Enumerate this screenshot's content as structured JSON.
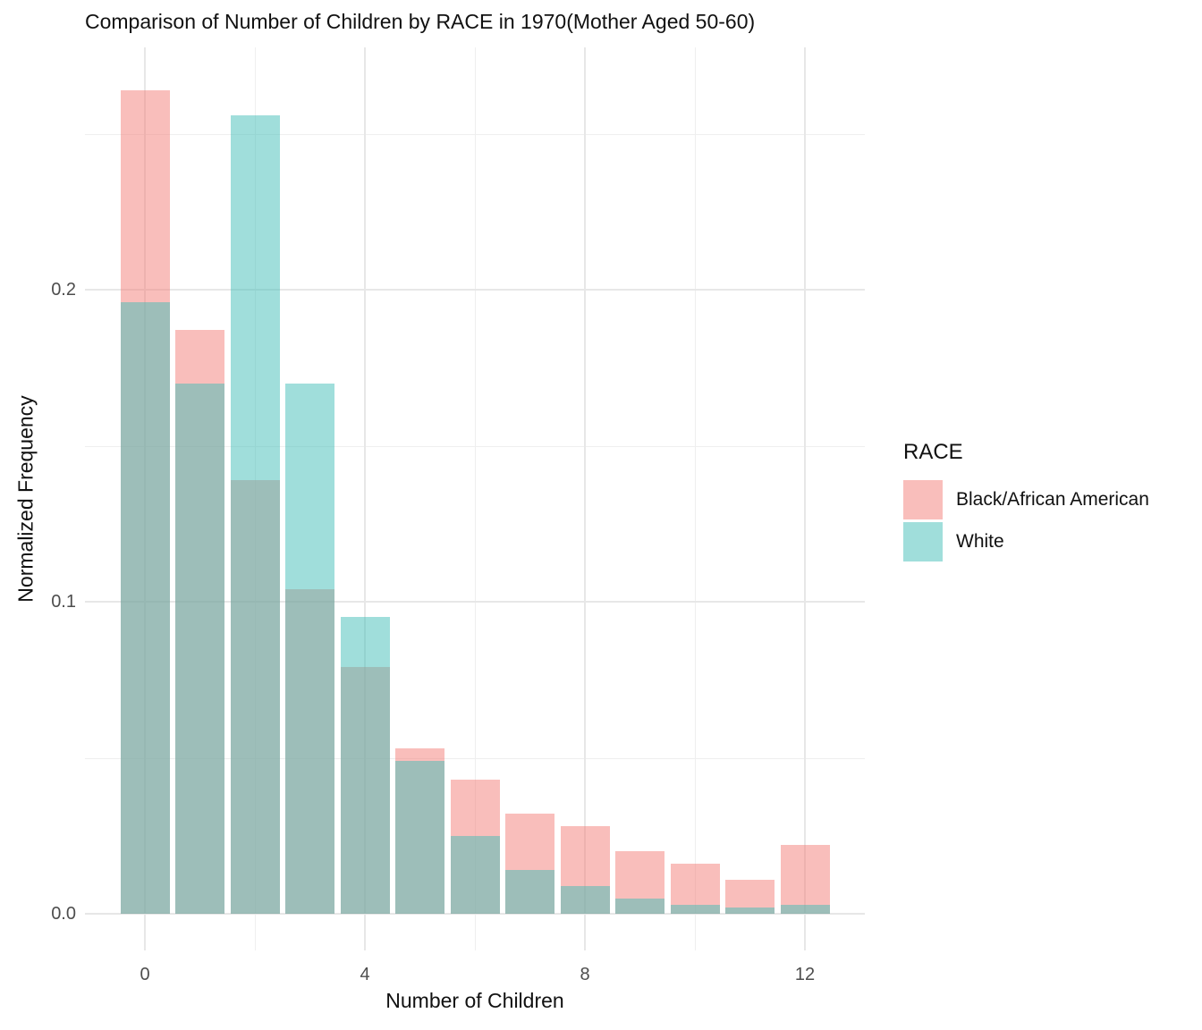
{
  "chart_data": {
    "type": "bar",
    "title": "Comparison of Number of Children by RACE in 1970(Mother Aged 50-60)",
    "xlabel": "Number of Children",
    "ylabel": "Normalized Frequency",
    "legend_title": "RACE",
    "legend_position": "right",
    "bar_mode": "overlay-identity",
    "alpha": 0.5,
    "grid": true,
    "background": "#FFFFFF",
    "gridline_color": "#E7E7E7",
    "tick_label_color": "#4D4D4D",
    "categories": [
      0,
      1,
      2,
      3,
      4,
      5,
      6,
      7,
      8,
      9,
      10,
      11,
      12
    ],
    "series": [
      {
        "key": "black",
        "name": "Black/African American",
        "base_color": "#F37D77",
        "fill_rgba": "rgba(243,125,119,0.5)",
        "flattened_on_white": "#F9BEBB",
        "values": [
          0.264,
          0.187,
          0.139,
          0.104,
          0.079,
          0.053,
          0.043,
          0.032,
          0.028,
          0.02,
          0.016,
          0.011,
          0.022
        ]
      },
      {
        "key": "white",
        "name": "White",
        "base_color": "#41BDB7",
        "fill_rgba": "rgba(65,189,183,0.5)",
        "flattened_on_white": "#A0DEDB",
        "values": [
          0.196,
          0.17,
          0.256,
          0.17,
          0.095,
          0.049,
          0.025,
          0.014,
          0.009,
          0.005,
          0.003,
          0.002,
          0.003
        ]
      }
    ],
    "x_ticks": [
      0,
      4,
      8,
      12
    ],
    "x_minor": [
      2,
      6,
      10
    ],
    "y_ticks": [
      "0.0",
      "0.1",
      "0.2"
    ],
    "y_tick_values": [
      0.0,
      0.1,
      0.2
    ],
    "y_minor": [
      0.05,
      0.15,
      0.25
    ],
    "ylim": [
      0,
      0.278
    ],
    "xlim": [
      -1.1,
      13.1
    ]
  }
}
